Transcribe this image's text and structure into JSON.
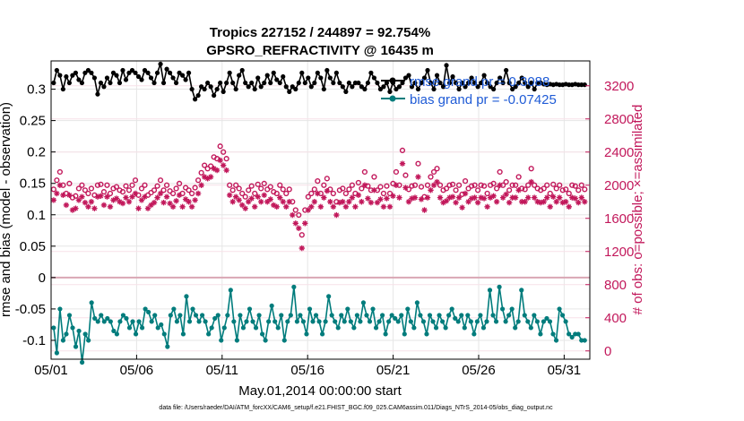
{
  "chart_data": {
    "type": "line",
    "title": "Tropics 227152 / 244897 = 92.754%",
    "subtitle": "GPSRO_REFRACTIVITY @ 16435 m",
    "xlabel": "May.01,2014 00:00:00 start",
    "ylabel": "rmse and bias (model - observation)",
    "y2label": "# of obs: o=possible; ×=assimilated",
    "footer": "data file: /Users/raeder/DAI/ATM_forcXX/CAM6_setup/f.e21.FHIST_BGC.f09_025.CAM6assim.011/Diags_NTrS_2014-05/obs_diag_output.nc",
    "xlim": [
      0,
      31.5
    ],
    "ylim": [
      -0.13,
      0.345
    ],
    "y2lim": [
      -100,
      3500
    ],
    "xtick_labels": [
      "05/01",
      "05/06",
      "05/11",
      "05/16",
      "05/21",
      "05/26",
      "05/31"
    ],
    "xtick_values": [
      0,
      5,
      10,
      15,
      20,
      25,
      30
    ],
    "ytick_labels": [
      "-0.1",
      "-0.05",
      "0",
      "0.05",
      "0.1",
      "0.15",
      "0.2",
      "0.25",
      "0.3"
    ],
    "ytick_values": [
      -0.1,
      -0.05,
      0,
      0.05,
      0.1,
      0.15,
      0.2,
      0.25,
      0.3
    ],
    "y2tick_labels": [
      "0",
      "400",
      "800",
      "1200",
      "1600",
      "2000",
      "2400",
      "2800",
      "3200"
    ],
    "y2tick_values": [
      0,
      400,
      800,
      1200,
      1600,
      2000,
      2400,
      2800,
      3200
    ],
    "grid": true,
    "legend_position": "top-right",
    "series": [
      {
        "name": "rmse grand pr = 0.3088",
        "axis": "left",
        "color": "#000000",
        "marker": "circle-filled",
        "values": [
          0.31,
          0.33,
          0.322,
          0.3,
          0.32,
          0.31,
          0.322,
          0.326,
          0.315,
          0.31,
          0.326,
          0.33,
          0.326,
          0.318,
          0.292,
          0.31,
          0.304,
          0.318,
          0.31,
          0.326,
          0.322,
          0.31,
          0.33,
          0.315,
          0.326,
          0.33,
          0.326,
          0.32,
          0.315,
          0.33,
          0.326,
          0.318,
          0.31,
          0.326,
          0.34,
          0.31,
          0.332,
          0.326,
          0.318,
          0.31,
          0.326,
          0.322,
          0.315,
          0.326,
          0.3,
          0.284,
          0.29,
          0.304,
          0.3,
          0.31,
          0.304,
          0.29,
          0.3,
          0.31,
          0.296,
          0.31,
          0.326,
          0.31,
          0.3,
          0.322,
          0.33,
          0.31,
          0.304,
          0.31,
          0.3,
          0.318,
          0.304,
          0.31,
          0.322,
          0.31,
          0.326,
          0.315,
          0.31,
          0.32,
          0.304,
          0.296,
          0.304,
          0.3,
          0.31,
          0.326,
          0.31,
          0.318,
          0.304,
          0.31,
          0.326,
          0.318,
          0.3,
          0.33,
          0.318,
          0.31,
          0.326,
          0.31,
          0.304,
          0.296,
          0.31,
          0.304,
          0.31,
          0.31,
          0.304,
          0.3,
          0.31,
          0.326,
          0.318,
          0.31,
          0.3,
          0.304,
          0.31,
          0.296,
          0.31,
          0.3,
          0.304,
          0.31,
          0.318,
          0.322,
          0.304,
          0.31,
          0.3,
          0.31,
          0.318,
          0.33,
          0.31,
          0.3,
          0.322,
          0.31,
          0.304,
          0.338,
          0.31,
          0.32,
          0.31,
          0.3,
          0.31,
          0.304,
          0.31,
          0.318,
          0.31,
          0.304,
          0.31,
          0.322,
          0.31,
          0.304,
          0.3,
          0.31,
          0.318,
          0.31,
          0.33,
          0.31,
          0.3,
          0.304,
          0.31,
          0.318,
          0.31,
          0.304,
          0.31,
          0.3,
          0.31,
          0.31,
          0.308,
          0.307,
          0.308,
          0.307,
          0.308,
          0.307,
          0.307,
          0.308,
          0.307,
          0.307,
          0.308,
          0.307,
          0.307,
          0.307
        ]
      },
      {
        "name": "bias grand pr = -0.07425",
        "axis": "left",
        "color": "#007c7c",
        "marker": "circle-filled",
        "values": [
          -0.08,
          -0.12,
          -0.05,
          -0.1,
          -0.09,
          -0.06,
          -0.08,
          -0.11,
          -0.085,
          -0.135,
          -0.09,
          -0.1,
          -0.04,
          -0.065,
          -0.07,
          -0.06,
          -0.07,
          -0.065,
          -0.07,
          -0.085,
          -0.09,
          -0.07,
          -0.06,
          -0.065,
          -0.08,
          -0.07,
          -0.09,
          -0.07,
          -0.08,
          -0.05,
          -0.055,
          -0.07,
          -0.06,
          -0.08,
          -0.075,
          -0.09,
          -0.11,
          -0.06,
          -0.05,
          -0.07,
          -0.06,
          -0.09,
          -0.03,
          -0.07,
          -0.05,
          -0.06,
          -0.07,
          -0.06,
          -0.07,
          -0.09,
          -0.08,
          -0.065,
          -0.06,
          -0.1,
          -0.08,
          -0.06,
          -0.02,
          -0.07,
          -0.1,
          -0.06,
          -0.08,
          -0.07,
          -0.05,
          -0.07,
          -0.08,
          -0.06,
          -0.09,
          -0.1,
          -0.07,
          -0.045,
          -0.07,
          -0.08,
          -0.06,
          -0.1,
          -0.07,
          -0.06,
          -0.015,
          -0.07,
          -0.06,
          -0.07,
          -0.09,
          -0.05,
          -0.07,
          -0.06,
          -0.07,
          -0.09,
          -0.07,
          -0.03,
          -0.06,
          -0.07,
          -0.08,
          -0.06,
          -0.07,
          -0.05,
          -0.07,
          -0.08,
          -0.06,
          -0.07,
          -0.04,
          -0.06,
          -0.07,
          -0.05,
          -0.08,
          -0.07,
          -0.06,
          -0.09,
          -0.07,
          -0.06,
          -0.065,
          -0.07,
          -0.06,
          -0.09,
          -0.05,
          -0.07,
          -0.08,
          -0.04,
          -0.06,
          -0.07,
          -0.09,
          -0.06,
          -0.07,
          -0.08,
          -0.06,
          -0.07,
          -0.08,
          -0.06,
          -0.05,
          -0.065,
          -0.07,
          -0.06,
          -0.08,
          -0.06,
          -0.07,
          -0.09,
          -0.07,
          -0.06,
          -0.08,
          -0.07,
          -0.02,
          -0.06,
          -0.07,
          -0.015,
          -0.05,
          -0.07,
          -0.06,
          -0.05,
          -0.08,
          -0.07,
          -0.02,
          -0.06,
          -0.07,
          -0.08,
          -0.06,
          -0.07,
          -0.09,
          -0.07,
          -0.065,
          -0.07,
          -0.09,
          -0.1,
          -0.05,
          -0.06,
          -0.07,
          -0.09,
          -0.095,
          -0.09,
          -0.09,
          -0.1,
          -0.1
        ]
      },
      {
        "name": "possible obs",
        "axis": "right",
        "color": "#c2185b",
        "marker": "circle-open",
        "values": [
          1950,
          2060,
          2160,
          2000,
          1900,
          2020,
          1850,
          1870,
          1960,
          2000,
          1940,
          1900,
          1960,
          1880,
          2000,
          2010,
          1920,
          2000,
          1900,
          1960,
          1980,
          1940,
          1920,
          1990,
          1940,
          2000,
          2060,
          1880,
          1960,
          2000,
          1880,
          1910,
          1940,
          1990,
          2060,
          1940,
          2000,
          1930,
          1900,
          1960,
          2020,
          1900,
          1970,
          1940,
          1900,
          1970,
          2060,
          2150,
          2240,
          2200,
          2230,
          2340,
          2320,
          2470,
          2400,
          2320,
          2000,
          1940,
          2000,
          1960,
          1900,
          1860,
          1940,
          1990,
          1900,
          2010,
          1960,
          2020,
          1950,
          1980,
          1920,
          1900,
          2000,
          1950,
          1900,
          1950,
          1800,
          1700,
          1640,
          1400,
          1700,
          1860,
          1900,
          1950,
          2050,
          1900,
          2000,
          2080,
          1950,
          1900,
          1800,
          1940,
          1960,
          1900,
          1950,
          2000,
          1900,
          2030,
          1960,
          2160,
          1990,
          1940,
          2100,
          1940,
          1980,
          1900,
          1990,
          1900,
          2020,
          2160,
          2000,
          2420,
          2120,
          1950,
          1990,
          2000,
          2260,
          1980,
          1860,
          2000,
          2100,
          2160,
          2200,
          2000,
          1940,
          1960,
          2000,
          2010,
          1940,
          2000,
          1890,
          2050,
          1960,
          1990,
          2000,
          1940,
          2000,
          1990,
          1900,
          2000,
          2020,
          1960,
          2160,
          2000,
          2040,
          1940,
          2000,
          2000,
          2100,
          1960,
          1950,
          2000,
          2200,
          2000,
          1960,
          1940,
          1960,
          2000,
          1900,
          2010,
          1960,
          2000,
          1940,
          1950,
          1900,
          2000,
          1990,
          1940,
          2000,
          1950
        ]
      },
      {
        "name": "assimilated obs",
        "axis": "right",
        "color": "#c2185b",
        "marker": "asterisk",
        "values": [
          1820,
          1900,
          2000,
          1880,
          1760,
          1880,
          1700,
          1720,
          1820,
          1860,
          1790,
          1740,
          1800,
          1720,
          1860,
          1870,
          1760,
          1860,
          1740,
          1820,
          1840,
          1800,
          1780,
          1850,
          1800,
          1860,
          1900,
          1720,
          1820,
          1860,
          1720,
          1760,
          1790,
          1850,
          1900,
          1790,
          1860,
          1780,
          1740,
          1810,
          1880,
          1740,
          1830,
          1800,
          1740,
          1820,
          1900,
          2000,
          2100,
          2080,
          2100,
          2200,
          2180,
          2300,
          2240,
          2180,
          1880,
          1800,
          1860,
          1820,
          1760,
          1720,
          1800,
          1840,
          1740,
          1860,
          1800,
          1880,
          1800,
          1830,
          1760,
          1740,
          1850,
          1800,
          1740,
          1800,
          1640,
          1540,
          1480,
          1240,
          1540,
          1700,
          1740,
          1800,
          1900,
          1740,
          1850,
          1930,
          1800,
          1740,
          1640,
          1790,
          1800,
          1740,
          1800,
          1850,
          1740,
          1880,
          1800,
          2000,
          1840,
          1790,
          1940,
          1790,
          1830,
          1740,
          1840,
          1740,
          1870,
          2000,
          1850,
          2260,
          1970,
          1800,
          1840,
          1850,
          2100,
          1830,
          1700,
          1850,
          1940,
          2000,
          2040,
          1850,
          1790,
          1810,
          1850,
          1860,
          1790,
          1850,
          1730,
          1900,
          1800,
          1840,
          1850,
          1790,
          1850,
          1840,
          1740,
          1850,
          1870,
          1800,
          2000,
          1850,
          1890,
          1790,
          1850,
          1850,
          1940,
          1800,
          1800,
          1850,
          2040,
          1850,
          1800,
          1790,
          1800,
          1850,
          1740,
          1860,
          1800,
          1850,
          1790,
          1800,
          1740,
          1850,
          1840,
          1790,
          1850,
          1800
        ]
      }
    ]
  }
}
